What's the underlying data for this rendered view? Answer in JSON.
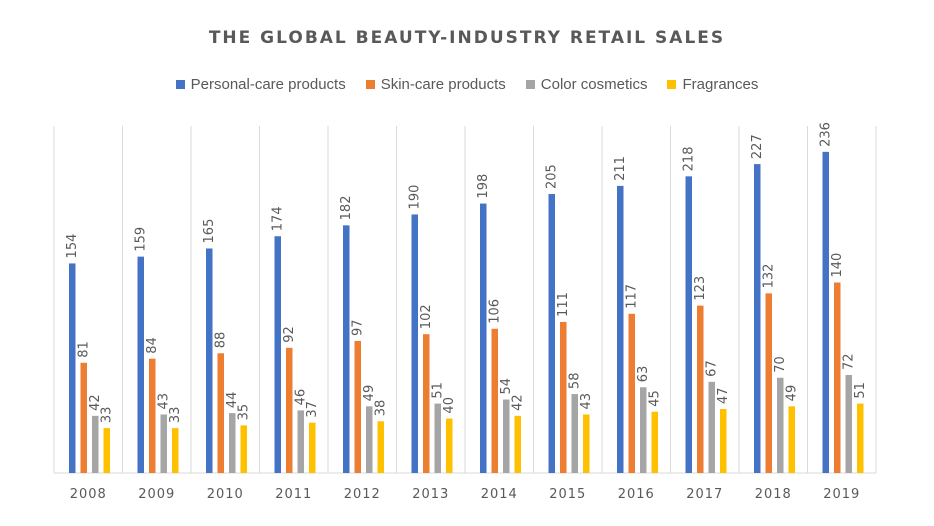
{
  "chart_data": {
    "type": "bar",
    "title": "THE GLOBAL BEAUTY-INDUSTRY RETAIL SALES",
    "categories": [
      "2008",
      "2009",
      "2010",
      "2011",
      "2012",
      "2013",
      "2014",
      "2015",
      "2016",
      "2017",
      "2018",
      "2019"
    ],
    "series": [
      {
        "name": "Personal-care products",
        "color": "#4472c4",
        "values": [
          154,
          159,
          165,
          174,
          182,
          190,
          198,
          205,
          211,
          218,
          227,
          236
        ]
      },
      {
        "name": "Skin-care products",
        "color": "#ed7d31",
        "values": [
          81,
          84,
          88,
          92,
          97,
          102,
          106,
          111,
          117,
          123,
          132,
          140
        ]
      },
      {
        "name": "Color cosmetics",
        "color": "#a5a5a5",
        "values": [
          42,
          43,
          44,
          46,
          49,
          51,
          54,
          58,
          63,
          67,
          70,
          72
        ]
      },
      {
        "name": "Fragrances",
        "color": "#ffc000",
        "values": [
          33,
          33,
          35,
          37,
          38,
          40,
          42,
          43,
          45,
          47,
          49,
          51
        ]
      }
    ],
    "ylim": [
      0,
      255
    ],
    "grid": "vertical category separators",
    "legend": "top",
    "data_labels": "rotated, above bars"
  }
}
